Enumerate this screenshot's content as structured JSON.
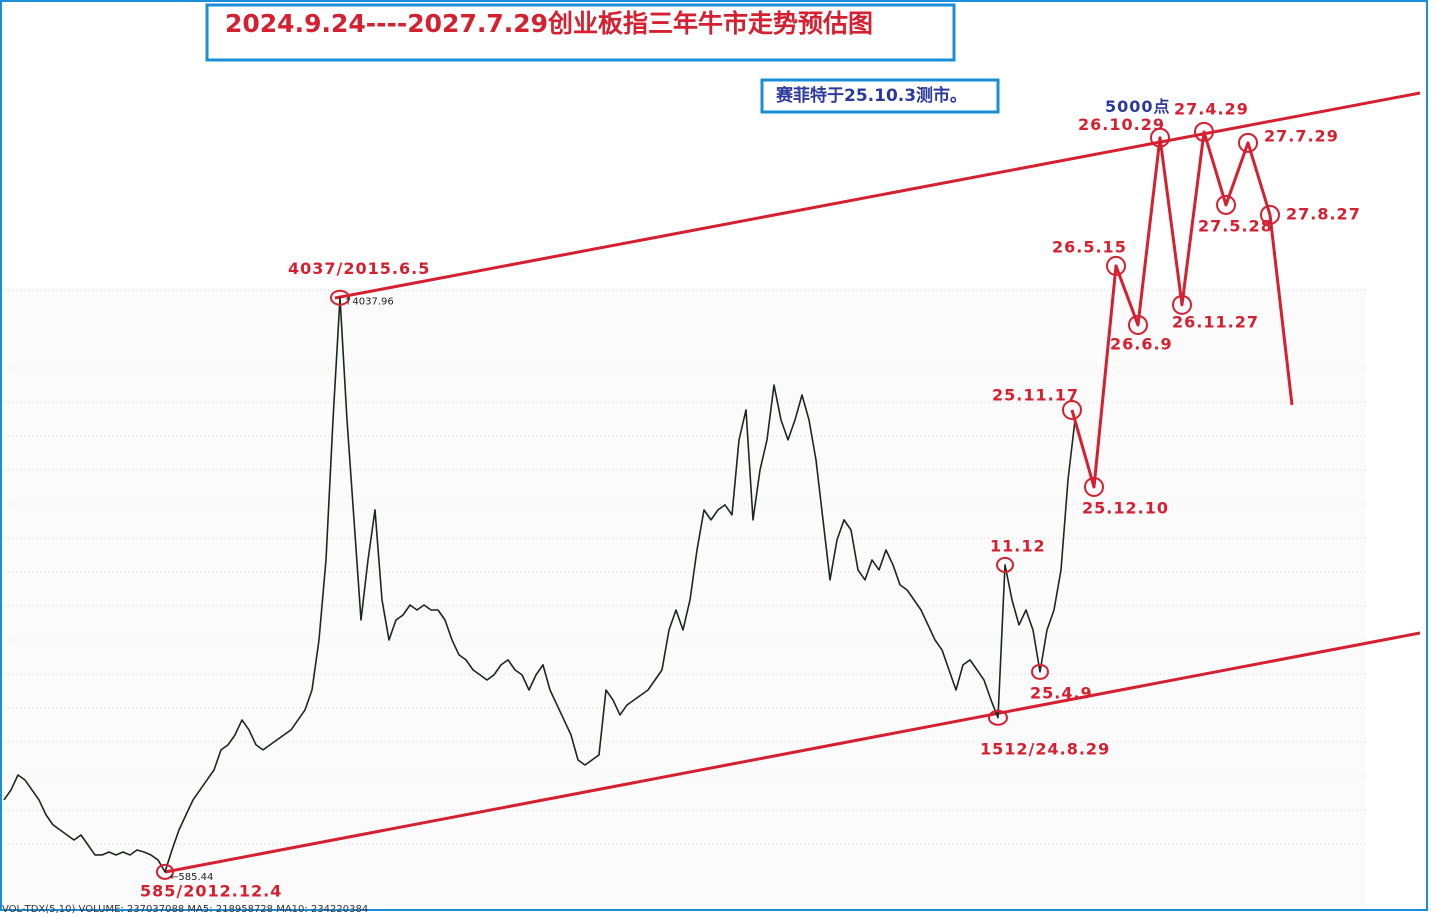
{
  "chart_data": [
    {
      "type": "line",
      "title": "2024.9.24----2027.7.29创业板指三年牛市走势预估图",
      "subtitle": "赛菲特于25.10.3测市。",
      "footer": "VOL-TDX(5,10) VOLUME: 237037088 MA5: 218958728 MA10: 234220384",
      "color": "#1a2a1a",
      "ylim": [
        308,
        5828
      ],
      "categories": [
        null,
        null,
        null,
        null,
        null,
        null,
        null,
        null,
        null,
        null,
        null,
        null,
        null,
        null,
        null,
        null,
        null,
        null,
        null,
        null,
        null,
        null,
        null,
        "585/2012.12.4",
        null,
        null,
        null,
        null,
        null,
        null,
        null,
        null,
        null,
        null,
        null,
        null,
        null,
        null,
        null,
        null,
        null,
        null,
        null,
        null,
        null,
        null,
        null,
        null,
        "4037/2015.6.5",
        null,
        null,
        null,
        null,
        null,
        null,
        null,
        null,
        null,
        null,
        null,
        null,
        null,
        null,
        null,
        null,
        null,
        null,
        null,
        null,
        null,
        null,
        null,
        null,
        null,
        null,
        null,
        null,
        null,
        null,
        null,
        null,
        null,
        null,
        null,
        null,
        null,
        null,
        null,
        null,
        null,
        null,
        null,
        null,
        null,
        null,
        null,
        null,
        null,
        null,
        null,
        null,
        null,
        null,
        null,
        null,
        null,
        null,
        null,
        null,
        null,
        null,
        null,
        null,
        null,
        null,
        null,
        null,
        null,
        null,
        null,
        null,
        null,
        null,
        null,
        null,
        null,
        null,
        null,
        null,
        null,
        null,
        null,
        null,
        null,
        null,
        null,
        null,
        null,
        null,
        null,
        null,
        null,
        "1512/24.8.29",
        "11.12",
        null,
        null,
        null,
        null,
        "25.4.9",
        null,
        null,
        null,
        null,
        null
      ],
      "values": [
        1018,
        1078,
        1168,
        1138,
        1078,
        1018,
        928,
        868,
        838,
        807,
        777,
        807,
        747,
        687,
        687,
        705,
        687,
        705,
        687,
        717,
        705,
        687,
        657,
        585.44,
        717,
        838,
        928,
        1018,
        1078,
        1138,
        1198,
        1319,
        1349,
        1409,
        1499,
        1439,
        1349,
        1319,
        1349,
        1379,
        1409,
        1439,
        1499,
        1559,
        1679,
        1980,
        2461,
        3303,
        4037.96,
        3303,
        2702,
        2100,
        2461,
        2762,
        2221,
        1980,
        2100,
        2130,
        2190,
        2160,
        2190,
        2160,
        2160,
        2100,
        1980,
        1890,
        1860,
        1800,
        1770,
        1739,
        1770,
        1830,
        1860,
        1800,
        1770,
        1679,
        1770,
        1830,
        1679,
        1589,
        1499,
        1409,
        1258,
        1228,
        1258,
        1289,
        1679,
        1619,
        1529,
        1589,
        1619,
        1649,
        1679,
        1739,
        1800,
        2040,
        2160,
        2040,
        2221,
        2521,
        2762,
        2702,
        2762,
        2792,
        2732,
        3183,
        3363,
        2702,
        3002,
        3183,
        3513,
        3303,
        3183,
        3303,
        3453,
        3303,
        3062,
        2702,
        2341,
        2581,
        2702,
        2641,
        2401,
        2341,
        2461,
        2401,
        2521,
        2431,
        2311,
        2281,
        2221,
        2160,
        2070,
        1980,
        1920,
        1800,
        1679,
        1830,
        1860,
        1800,
        1739,
        1619,
        1512,
        2431,
        2221,
        2070,
        2160,
        2040,
        1788,
        2040,
        2160,
        2401,
        2942,
        3303
      ],
      "value_labels": [
        null,
        null,
        null,
        null,
        null,
        null,
        null,
        null,
        null,
        null,
        null,
        null,
        null,
        null,
        null,
        null,
        null,
        null,
        null,
        null,
        null,
        null,
        null,
        "←585.44",
        null,
        null,
        null,
        null,
        null,
        null,
        null,
        null,
        null,
        null,
        null,
        null,
        null,
        null,
        null,
        null,
        null,
        null,
        null,
        null,
        null,
        null,
        null,
        null,
        "↑4037.96",
        null,
        null,
        null,
        null,
        null,
        null,
        null,
        null,
        null,
        null,
        null,
        null,
        null,
        null,
        null,
        null,
        null,
        null,
        null,
        null,
        null,
        null,
        null,
        null,
        null,
        null,
        null,
        null,
        null,
        null,
        null,
        null,
        null,
        null,
        null,
        null,
        null,
        null,
        null,
        null,
        null,
        null,
        null,
        null,
        null,
        null,
        null,
        null,
        null,
        null,
        null,
        null,
        null,
        null,
        null,
        null,
        null,
        null,
        null,
        null,
        null,
        null,
        null,
        null,
        null,
        null,
        null,
        null,
        null,
        null,
        null,
        null,
        null,
        null,
        null,
        null,
        null,
        null,
        null,
        null,
        null,
        null,
        null,
        null,
        null,
        null,
        null,
        null,
        null,
        null,
        null,
        null,
        null,
        null,
        null,
        null,
        null,
        null,
        null,
        null,
        null,
        null,
        null,
        null,
        null
      ]
    },
    {
      "type": "line",
      "color": "#d42030",
      "ylim": [
        308,
        5828
      ],
      "categories": [
        "25.11.17",
        "25.12.10",
        "26.5.15",
        "26.6.9",
        "26.10.29",
        "26.11.27",
        "27.4.29",
        "27.5.28",
        "27.7.29",
        "27.8.27",
        null
      ],
      "values": [
        3363,
        2900,
        4229,
        3874,
        5000,
        3995,
        5035,
        4596,
        4969,
        4536,
        3393
      ],
      "value_labels": [
        null,
        null,
        null,
        null,
        "5000点",
        null,
        null,
        null,
        null,
        null,
        null
      ]
    }
  ]
}
